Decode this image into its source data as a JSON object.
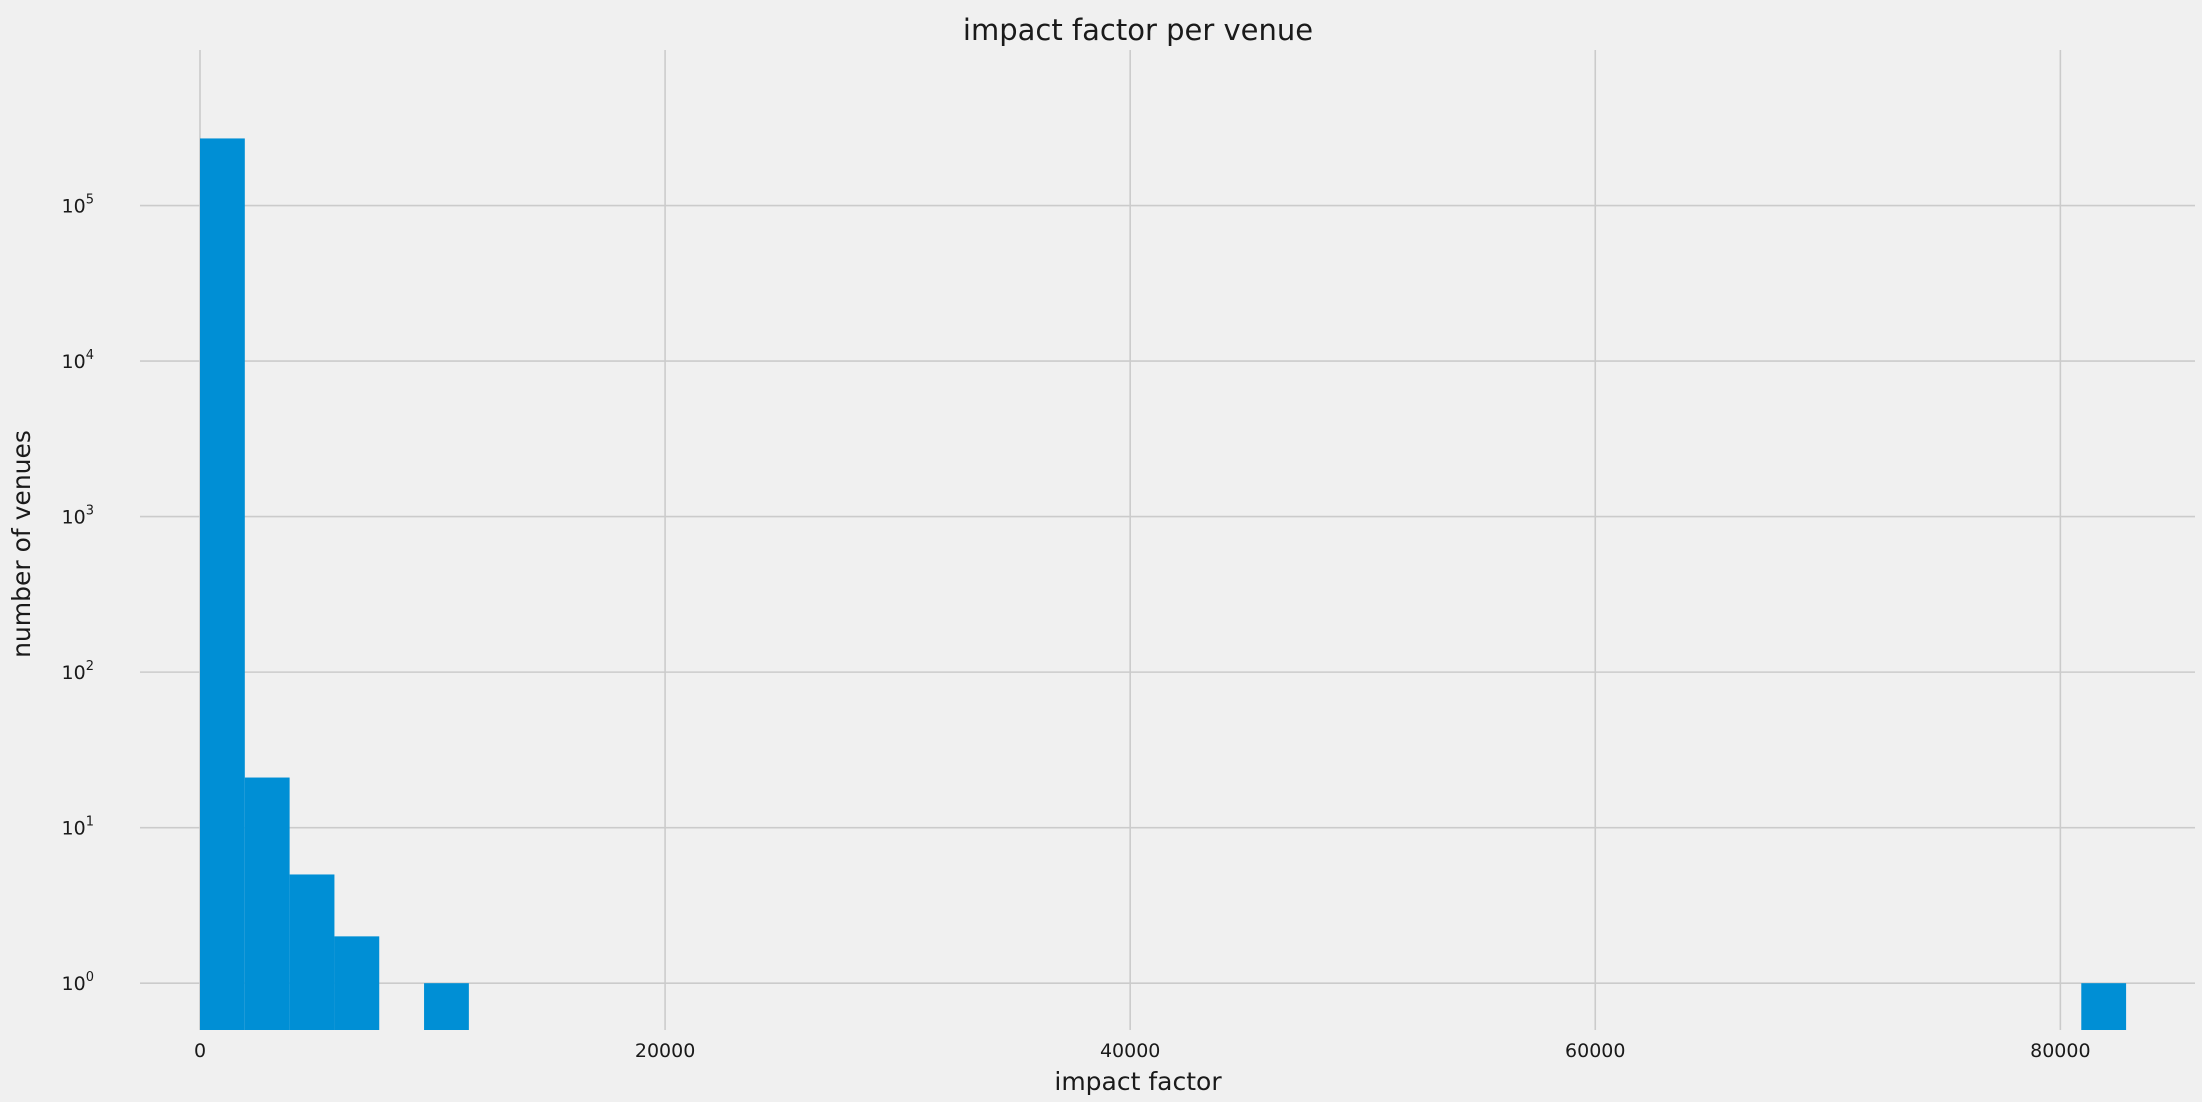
{
  "chart_data": {
    "type": "bar",
    "title": "impact factor per venue",
    "xlabel": "impact factor",
    "ylabel": "number of venues",
    "xlim": [
      -2580,
      85790
    ],
    "ylim": [
      0.5,
      1000000
    ],
    "yscale": "log",
    "grid": true,
    "bin_width": 1927,
    "bins": [
      {
        "x0": 0,
        "x1": 1927,
        "count": 270000
      },
      {
        "x0": 1927,
        "x1": 3854,
        "count": 21
      },
      {
        "x0": 3854,
        "x1": 5781,
        "count": 5
      },
      {
        "x0": 5781,
        "x1": 7708,
        "count": 2
      },
      {
        "x0": 9635,
        "x1": 11562,
        "count": 1
      },
      {
        "x0": 80900,
        "x1": 82827,
        "count": 1
      }
    ],
    "x_ticks": [
      {
        "value": 0,
        "label": "0"
      },
      {
        "value": 20000,
        "label": "20000"
      },
      {
        "value": 40000,
        "label": "40000"
      },
      {
        "value": 60000,
        "label": "60000"
      },
      {
        "value": 80000,
        "label": "80000"
      }
    ],
    "y_ticks": [
      {
        "value": 1,
        "base": "10",
        "exp": "0"
      },
      {
        "value": 10,
        "base": "10",
        "exp": "1"
      },
      {
        "value": 100,
        "base": "10",
        "exp": "2"
      },
      {
        "value": 1000,
        "base": "10",
        "exp": "3"
      },
      {
        "value": 10000,
        "base": "10",
        "exp": "4"
      },
      {
        "value": 100000,
        "base": "10",
        "exp": "5"
      }
    ],
    "colors": {
      "bar": "#008fd5",
      "grid": "#cbcbcb",
      "background": "#f0f0f0"
    }
  }
}
